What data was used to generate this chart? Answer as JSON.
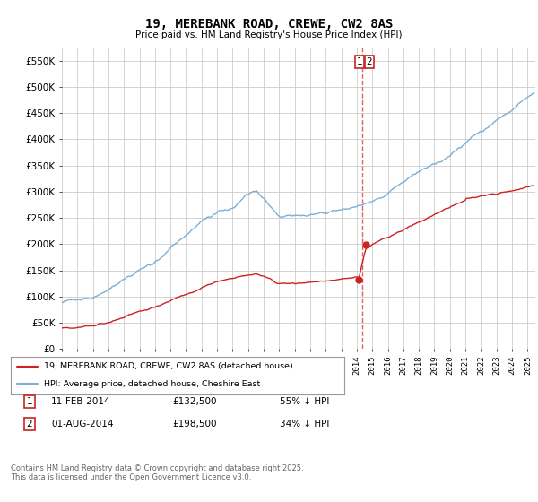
{
  "title": "19, MEREBANK ROAD, CREWE, CW2 8AS",
  "subtitle": "Price paid vs. HM Land Registry's House Price Index (HPI)",
  "ylim": [
    0,
    575000
  ],
  "yticks": [
    0,
    50000,
    100000,
    150000,
    200000,
    250000,
    300000,
    350000,
    400000,
    450000,
    500000,
    550000
  ],
  "background_color": "#ffffff",
  "grid_color": "#cccccc",
  "hpi_color": "#7bafd4",
  "house_color": "#cc2222",
  "dashed_line_color": "#cc2222",
  "legend_label_house": "19, MEREBANK ROAD, CREWE, CW2 8AS (detached house)",
  "legend_label_hpi": "HPI: Average price, detached house, Cheshire East",
  "transaction1_date": "11-FEB-2014",
  "transaction1_price": "£132,500",
  "transaction1_hpi": "55% ↓ HPI",
  "transaction2_date": "01-AUG-2014",
  "transaction2_price": "£198,500",
  "transaction2_hpi": "34% ↓ HPI",
  "footer": "Contains HM Land Registry data © Crown copyright and database right 2025.\nThis data is licensed under the Open Government Licence v3.0.",
  "marker1_x": 2014.1,
  "marker1_y": 132500,
  "marker2_x": 2014.58,
  "marker2_y": 198500,
  "vline_x": 2014.35,
  "xmin": 1995,
  "xmax": 2025.5
}
